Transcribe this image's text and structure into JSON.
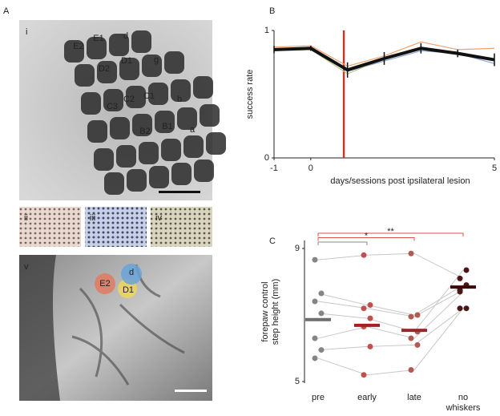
{
  "panel_labels": [
    "A",
    "B",
    "C"
  ],
  "image_labels": [
    "i",
    "ii",
    "iii",
    "iv",
    "v"
  ],
  "barrel_labels": [
    "E2",
    "E1",
    "d",
    "D1",
    "D2",
    "g",
    "C1",
    "C2",
    "C3",
    "b",
    "B2",
    "B1",
    "a"
  ],
  "overlay_labels": [
    "E2",
    "d",
    "D1"
  ],
  "chart_data": [
    {
      "type": "line",
      "ylabel": "success rate",
      "xlabel": "days/sessions post ipsilateral lesion",
      "x": [
        -1,
        0,
        1,
        2,
        3,
        4,
        5
      ],
      "xlim": [
        -1,
        5
      ],
      "xticks": [
        -1,
        0,
        5
      ],
      "ylim": [
        0,
        1
      ],
      "yticks": [
        0,
        1
      ],
      "lesion_marker": {
        "x": 0.9,
        "color": "#c0392b"
      },
      "series": [
        {
          "color": "#f0a070",
          "values": [
            0.87,
            0.88,
            0.72,
            0.8,
            0.91,
            0.85,
            0.86
          ]
        },
        {
          "color": "#8fa8d8",
          "values": [
            0.85,
            0.86,
            0.68,
            0.76,
            0.84,
            0.82,
            0.74
          ]
        },
        {
          "color": "#b8c890",
          "values": [
            0.84,
            0.85,
            0.66,
            0.78,
            0.85,
            0.83,
            0.77
          ]
        },
        {
          "color": "#111111",
          "values": [
            0.85,
            0.86,
            0.69,
            0.78,
            0.86,
            0.82,
            0.77
          ],
          "errors": [
            0.03,
            0.02,
            0.06,
            0.05,
            0.04,
            0.03,
            0.05
          ]
        }
      ]
    },
    {
      "type": "dot",
      "ylabel": [
        "forepaw control",
        "step height (mm)"
      ],
      "categories": [
        "pre",
        "early",
        "late",
        [
          "no",
          "whiskers"
        ]
      ],
      "colors": [
        "#858585",
        "#c0504d",
        "#b05a55",
        "#4a1616"
      ],
      "mean_colors": [
        "#6e6e6e",
        "#a81e22",
        "#962a2a",
        "#3a0a0a"
      ],
      "means": [
        6.86,
        6.69,
        6.54,
        7.84
      ],
      "ylim": [
        5,
        9
      ],
      "yticks": [
        5,
        9
      ],
      "subjects": [
        [
          8.66,
          8.8,
          8.85,
          8.1
        ],
        [
          7.65,
          7.3,
          7.0,
          7.9
        ],
        [
          7.41,
          7.2,
          6.95,
          7.75
        ],
        [
          7.05,
          6.9,
          6.5,
          8.35
        ],
        [
          6.3,
          6.65,
          6.3,
          7.7
        ],
        [
          5.95,
          6.05,
          6.1,
          7.2
        ],
        [
          5.7,
          5.2,
          5.35,
          7.2
        ]
      ],
      "significance": [
        {
          "from": 0,
          "to": 1,
          "color": "#888888"
        },
        {
          "from": 0,
          "to": 2,
          "color": "#d9534f",
          "label": "*"
        },
        {
          "from": 0,
          "to": 3,
          "color": "#d9534f",
          "label": "**"
        }
      ]
    }
  ]
}
